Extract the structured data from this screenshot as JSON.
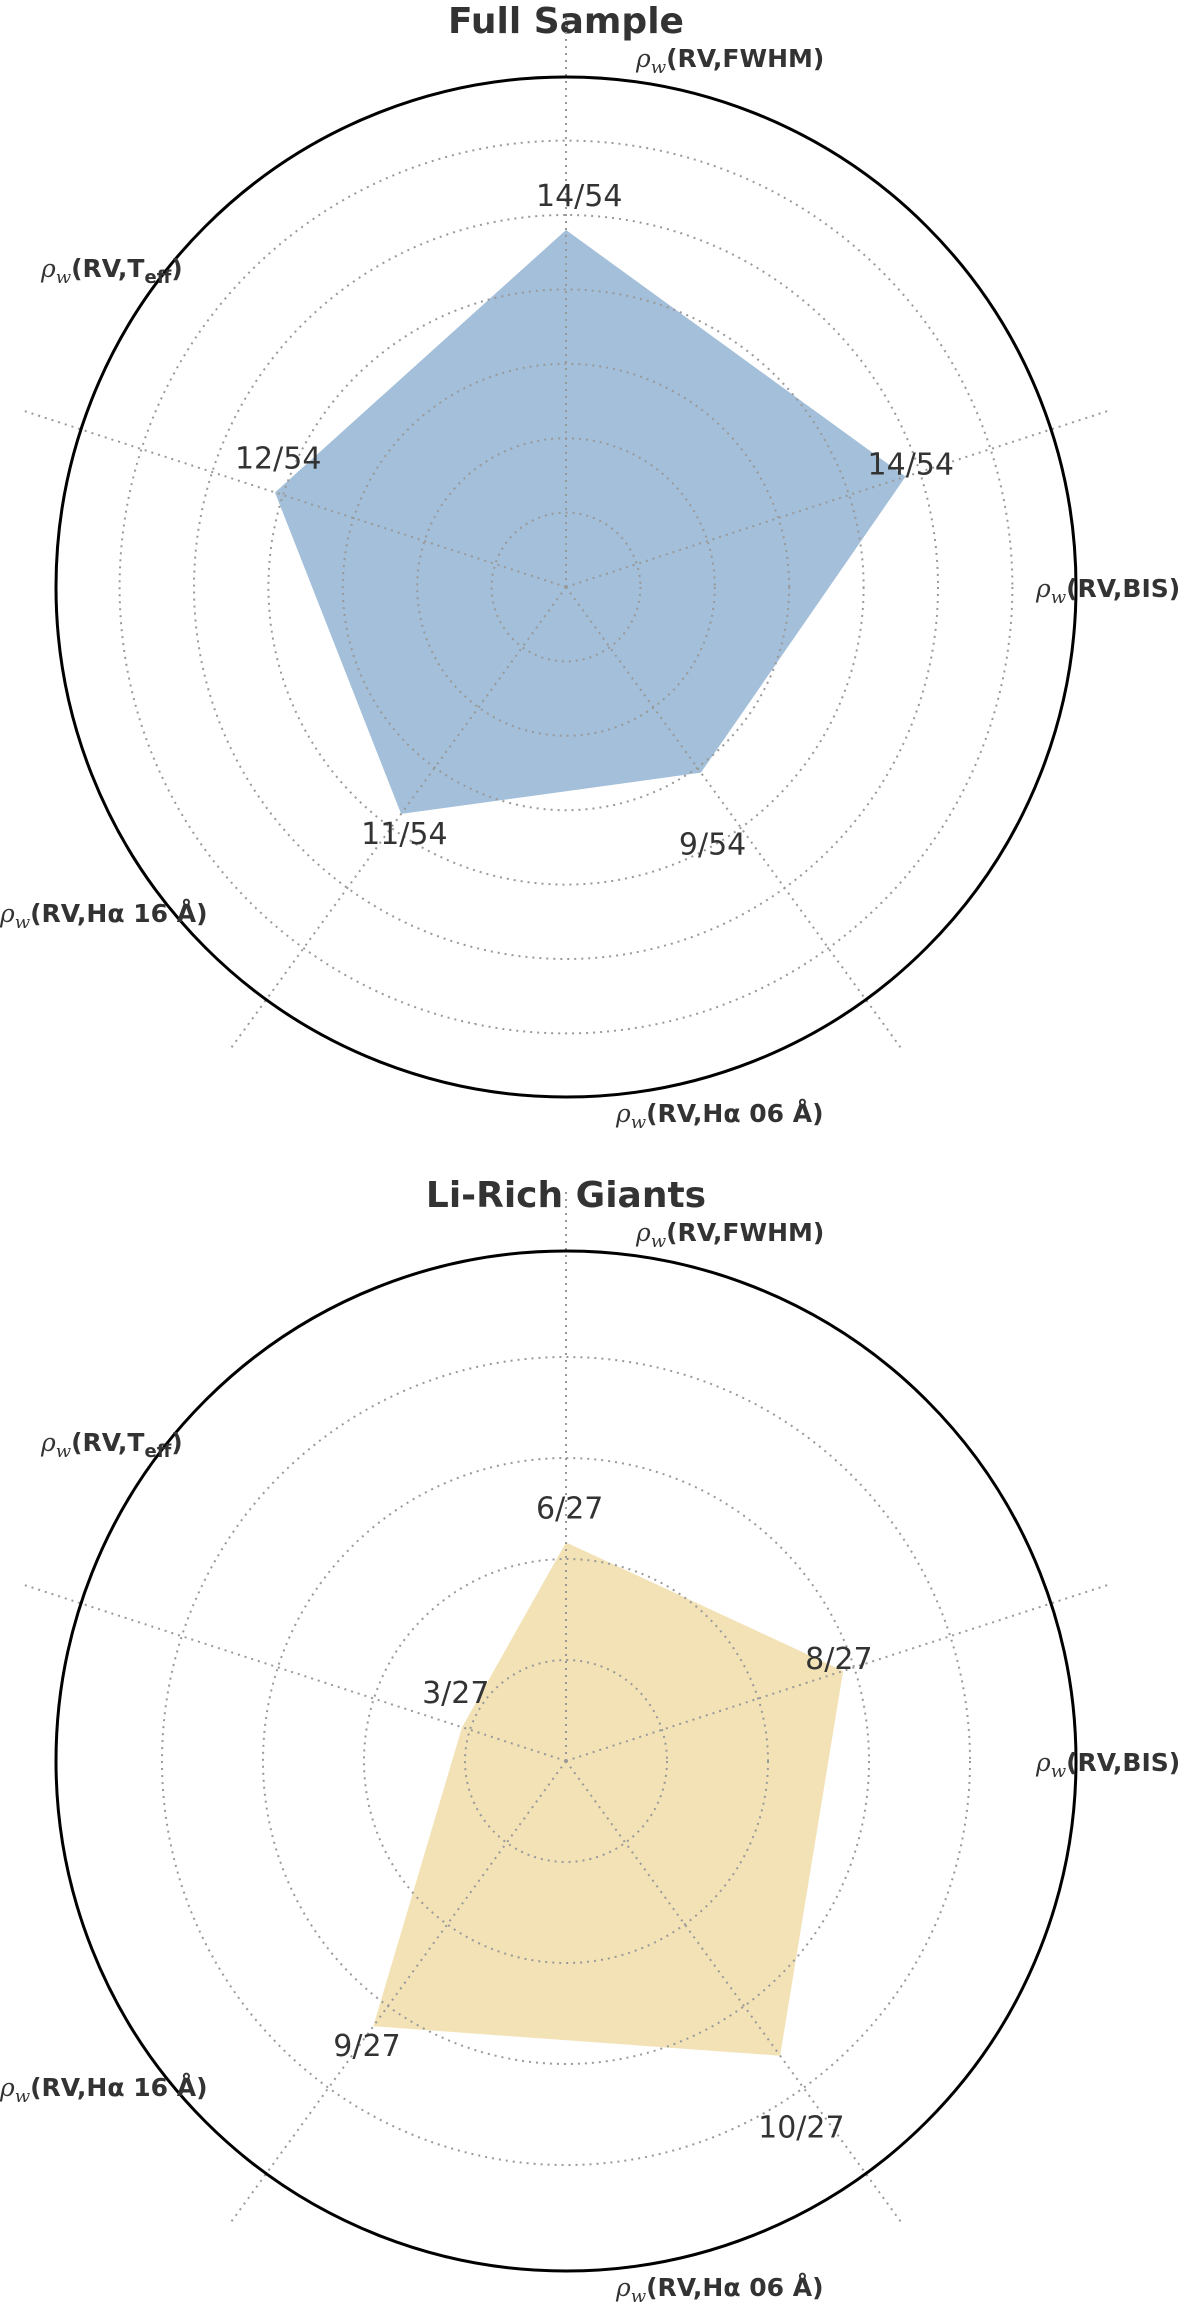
{
  "chart_data": [
    {
      "type": "radar",
      "title": "Full Sample",
      "axes": [
        "ρw(RV,BIS)",
        "ρw(RV,FWHM)",
        "ρw(RV,Teff)",
        "ρw(RV,Hα 16 Å)",
        "ρw(RV,Hα 06 Å)"
      ],
      "values": [
        14,
        14,
        12,
        11,
        9
      ],
      "total": 54,
      "value_labels": [
        "14/54",
        "14/54",
        "12/54",
        "11/54",
        "9/54"
      ],
      "rmax": 20,
      "grid": true,
      "color": "#a3bfd9"
    },
    {
      "type": "radar",
      "title": "Li-Rich Giants",
      "axes": [
        "ρw(RV,BIS)",
        "ρw(RV,FWHM)",
        "ρw(RV,Teff)",
        "ρw(RV,Hα 16 Å)",
        "ρw(RV,Hα 06 Å)"
      ],
      "values": [
        8,
        6,
        3,
        9,
        10
      ],
      "total": 27,
      "value_labels": [
        "8/27",
        "6/27",
        "3/27",
        "9/27",
        "10/27"
      ],
      "rmax": 14,
      "grid": true,
      "color": "#f2e2b6"
    }
  ]
}
